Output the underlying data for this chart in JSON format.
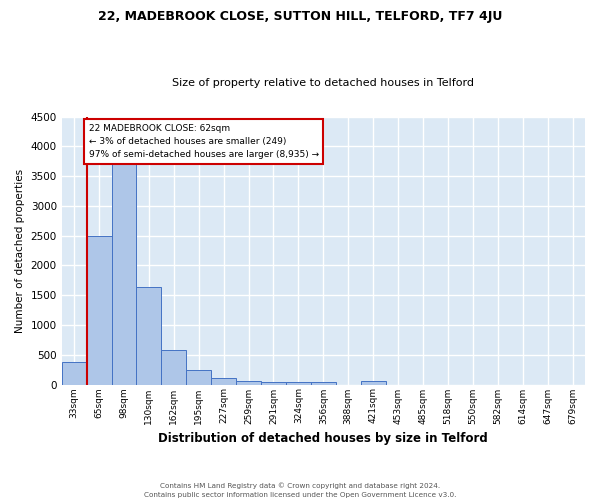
{
  "title1": "22, MADEBROOK CLOSE, SUTTON HILL, TELFORD, TF7 4JU",
  "title2": "Size of property relative to detached houses in Telford",
  "xlabel": "Distribution of detached houses by size in Telford",
  "ylabel": "Number of detached properties",
  "footnote": "Contains HM Land Registry data © Crown copyright and database right 2024.\nContains public sector information licensed under the Open Government Licence v3.0.",
  "categories": [
    "33sqm",
    "65sqm",
    "98sqm",
    "130sqm",
    "162sqm",
    "195sqm",
    "227sqm",
    "259sqm",
    "291sqm",
    "324sqm",
    "356sqm",
    "388sqm",
    "421sqm",
    "453sqm",
    "485sqm",
    "518sqm",
    "550sqm",
    "582sqm",
    "614sqm",
    "647sqm",
    "679sqm"
  ],
  "values": [
    380,
    2500,
    3720,
    1640,
    580,
    240,
    110,
    65,
    45,
    40,
    40,
    0,
    55,
    0,
    0,
    0,
    0,
    0,
    0,
    0,
    0
  ],
  "bar_color": "#aec6e8",
  "bar_edge_color": "#4472c4",
  "bg_color": "#dce9f5",
  "grid_color": "#ffffff",
  "marker_color": "#cc0000",
  "annotation_box_color": "#ffffff",
  "annotation_box_edge": "#cc0000",
  "marker_label_line1": "22 MADEBROOK CLOSE: 62sqm",
  "marker_label_line2": "← 3% of detached houses are smaller (249)",
  "marker_label_line3": "97% of semi-detached houses are larger (8,935) →",
  "ylim": [
    0,
    4500
  ],
  "yticks": [
    0,
    500,
    1000,
    1500,
    2000,
    2500,
    3000,
    3500,
    4000,
    4500
  ]
}
